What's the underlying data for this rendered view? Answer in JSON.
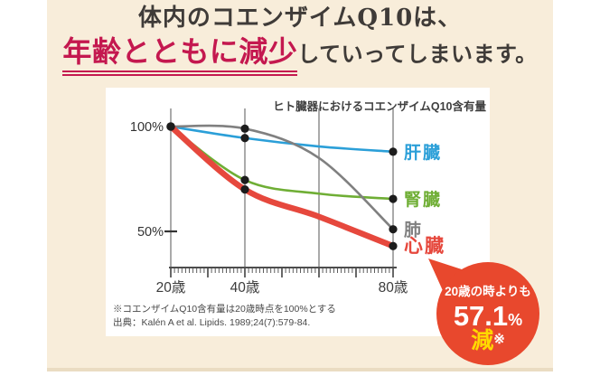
{
  "page": {
    "heading_line1": "体内のコエンザイムQ10は、",
    "heading_emphasis": "年齢とともに減少",
    "heading_rest": "していってしまいます。",
    "colors": {
      "background": "#f8edda",
      "heading_text": "#3f3b38",
      "emphasis": "#c4184f",
      "panel": "#ffffff"
    }
  },
  "chart_data": {
    "type": "line",
    "title": "ヒト臓器におけるコエンザイムQ10含有量",
    "x": [
      20,
      40,
      60,
      80
    ],
    "x_tick_labels": [
      "20歳",
      "40歳",
      "80歳"
    ],
    "x_tick_label_indices": [
      0,
      1,
      3
    ],
    "ylim": [
      0,
      100
    ],
    "y_ticks": [
      {
        "label": "100%",
        "value": 100,
        "dash": false
      },
      {
        "label": "50%",
        "value": 50,
        "dash": true
      }
    ],
    "grid": "vertical-only",
    "legend_position": "right-of-line-ends",
    "series": [
      {
        "name": "肝臓",
        "color": "#2b9fd8",
        "width": 2.6,
        "label_size": 19,
        "values": [
          100,
          94.5,
          90.5,
          88
        ],
        "dot_indices": [
          1,
          3
        ]
      },
      {
        "name": "腎臓",
        "color": "#6fae35",
        "width": 2.6,
        "label_size": 19,
        "values": [
          100,
          74.5,
          68,
          65.5
        ],
        "dot_indices": [
          1,
          3
        ]
      },
      {
        "name": "肺",
        "color": "#808080",
        "width": 2.6,
        "label_size": 19,
        "values": [
          100,
          99,
          85,
          51
        ],
        "dot_indices": [
          1,
          3
        ]
      },
      {
        "name": "心臓",
        "color": "#e6483d",
        "width": 6.5,
        "label_size": 21,
        "values": [
          100,
          70,
          57,
          43
        ],
        "dot_indices": [
          1,
          3
        ]
      }
    ],
    "start_dot": true,
    "footnote1": "※コエンザイムQ10含有量は20歳時点を100%とする",
    "footnote2": "出典：Kalén A et al. Lipids. 1989;24(7):579-84."
  },
  "badge": {
    "line1": "20歳の時よりも",
    "value": "57.1",
    "percent": "%",
    "word": "減",
    "note_mark": "※",
    "color": "#e8482d",
    "word_color": "#ffd900"
  }
}
